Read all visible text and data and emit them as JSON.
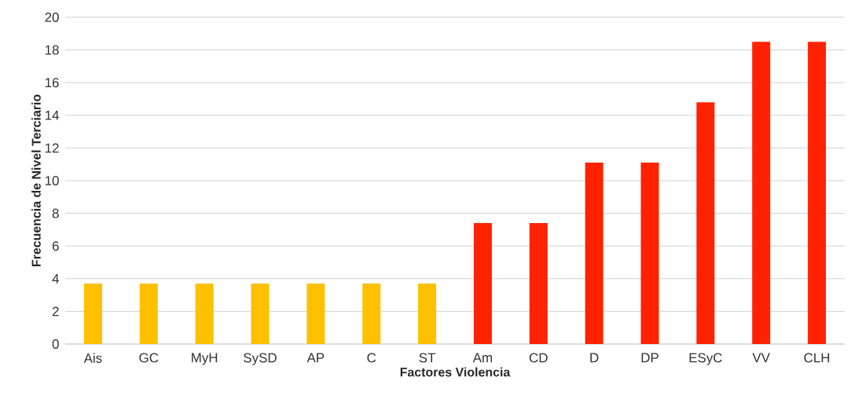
{
  "chart_data": {
    "type": "bar",
    "xlabel": "Factores Violencia",
    "ylabel": "Frecuencia de Nivel Terciario",
    "categories": [
      "Ais",
      "GC",
      "MyH",
      "SySD",
      "AP",
      "C",
      "ST",
      "Am",
      "CD",
      "D",
      "DP",
      "ESyC",
      "VV",
      "CLH"
    ],
    "values": [
      3.7,
      3.7,
      3.7,
      3.7,
      3.7,
      3.7,
      3.7,
      7.4,
      7.4,
      11.1,
      11.1,
      14.8,
      18.5,
      18.5
    ],
    "colors": [
      "#ffc000",
      "#ffc000",
      "#ffc000",
      "#ffc000",
      "#ffc000",
      "#ffc000",
      "#ffc000",
      "#ff2200",
      "#ff2200",
      "#ff2200",
      "#ff2200",
      "#ff2200",
      "#ff2200",
      "#ff2200"
    ],
    "ylim": [
      0,
      20
    ],
    "yticks": [
      0,
      2,
      4,
      6,
      8,
      10,
      12,
      14,
      16,
      18,
      20
    ],
    "grid": "y"
  }
}
